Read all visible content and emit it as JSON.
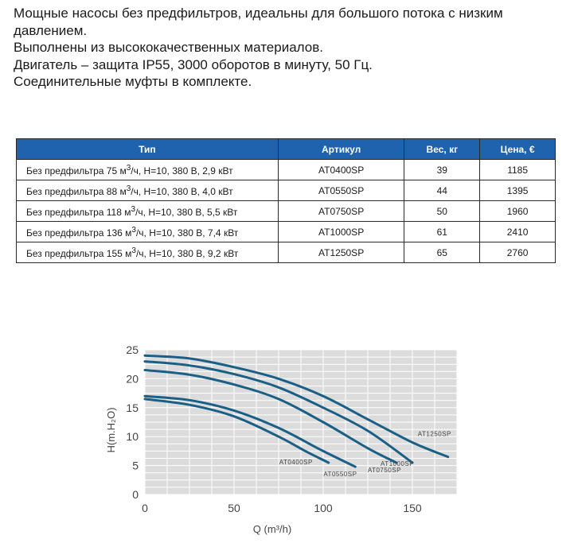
{
  "intro": {
    "lines": [
      "Мощные насосы без предфильтров, идеальны для большого потока с низким давлением.",
      "Выполнены из высококачественных материалов.",
      "Двигатель – защита IP55, 3000 оборотов в минуту, 50 Гц.",
      "Соединительные муфты в комплекте."
    ]
  },
  "table": {
    "headers": [
      "Тип",
      "Артикул",
      "Вес,  кг",
      "Цена, €"
    ],
    "rows": [
      {
        "type_pre": "Без предфильтра 75 м",
        "type_sup": "3",
        "type_post": "/ч, H=10, 380 В, 2,9 кВт",
        "article": "AT0400SP",
        "weight": "39",
        "price": "1185"
      },
      {
        "type_pre": "Без предфильтра 88 м",
        "type_sup": "3",
        "type_post": "/ч, H=10, 380 В, 4,0 кВт",
        "article": "AT0550SP",
        "weight": "44",
        "price": "1395"
      },
      {
        "type_pre": "Без предфильтра 118 м",
        "type_sup": "3",
        "type_post": "/ч, H=10, 380 В, 5,5 кВт",
        "article": "AT0750SP",
        "weight": "50",
        "price": "1960"
      },
      {
        "type_pre": "Без предфильтра 136 м",
        "type_sup": "3",
        "type_post": "/ч, H=10, 380 В, 7,4 кВт",
        "article": "AT1000SP",
        "weight": "61",
        "price": "2410"
      },
      {
        "type_pre": "Без предфильтра 155 м",
        "type_sup": "3",
        "type_post": "/ч, H=10, 380 В, 9,2 кВт",
        "article": "AT1250SP",
        "weight": "65",
        "price": "2760"
      }
    ]
  },
  "chart_data": {
    "type": "line",
    "xlabel": "Q (m³/h)",
    "ylabel": "H(m.H₂O)",
    "xlim": [
      0,
      175
    ],
    "ylim": [
      0,
      25
    ],
    "x_ticks": [
      0,
      50,
      100,
      150
    ],
    "y_ticks": [
      0,
      5,
      10,
      15,
      20,
      25
    ],
    "grid": true,
    "colors": {
      "line": "#1a5f86",
      "grid": "#ffffff",
      "background": "#dcdcdc",
      "text": "#444444"
    },
    "series": [
      {
        "name": "AT0400SP",
        "points": [
          [
            0,
            16.5
          ],
          [
            25,
            15.5
          ],
          [
            50,
            13.5
          ],
          [
            75,
            10
          ],
          [
            90,
            7.5
          ],
          [
            103,
            5.5
          ]
        ]
      },
      {
        "name": "AT0550SP",
        "points": [
          [
            0,
            17
          ],
          [
            25,
            16.3
          ],
          [
            50,
            14.5
          ],
          [
            75,
            11.5
          ],
          [
            100,
            7.5
          ],
          [
            118,
            4.8
          ]
        ]
      },
      {
        "name": "AT0750SP",
        "points": [
          [
            0,
            21.5
          ],
          [
            25,
            20.7
          ],
          [
            50,
            19
          ],
          [
            75,
            16.5
          ],
          [
            100,
            12.5
          ],
          [
            125,
            8
          ],
          [
            141,
            5.5
          ]
        ]
      },
      {
        "name": "AT1000SP",
        "points": [
          [
            0,
            23
          ],
          [
            25,
            22.3
          ],
          [
            50,
            20.8
          ],
          [
            75,
            18.5
          ],
          [
            100,
            15
          ],
          [
            125,
            11
          ],
          [
            150,
            5.5
          ]
        ]
      },
      {
        "name": "AT1250SP",
        "points": [
          [
            0,
            24
          ],
          [
            25,
            23.5
          ],
          [
            50,
            22
          ],
          [
            75,
            20
          ],
          [
            100,
            17
          ],
          [
            125,
            13
          ],
          [
            150,
            9
          ],
          [
            170,
            6.5
          ]
        ]
      }
    ]
  }
}
